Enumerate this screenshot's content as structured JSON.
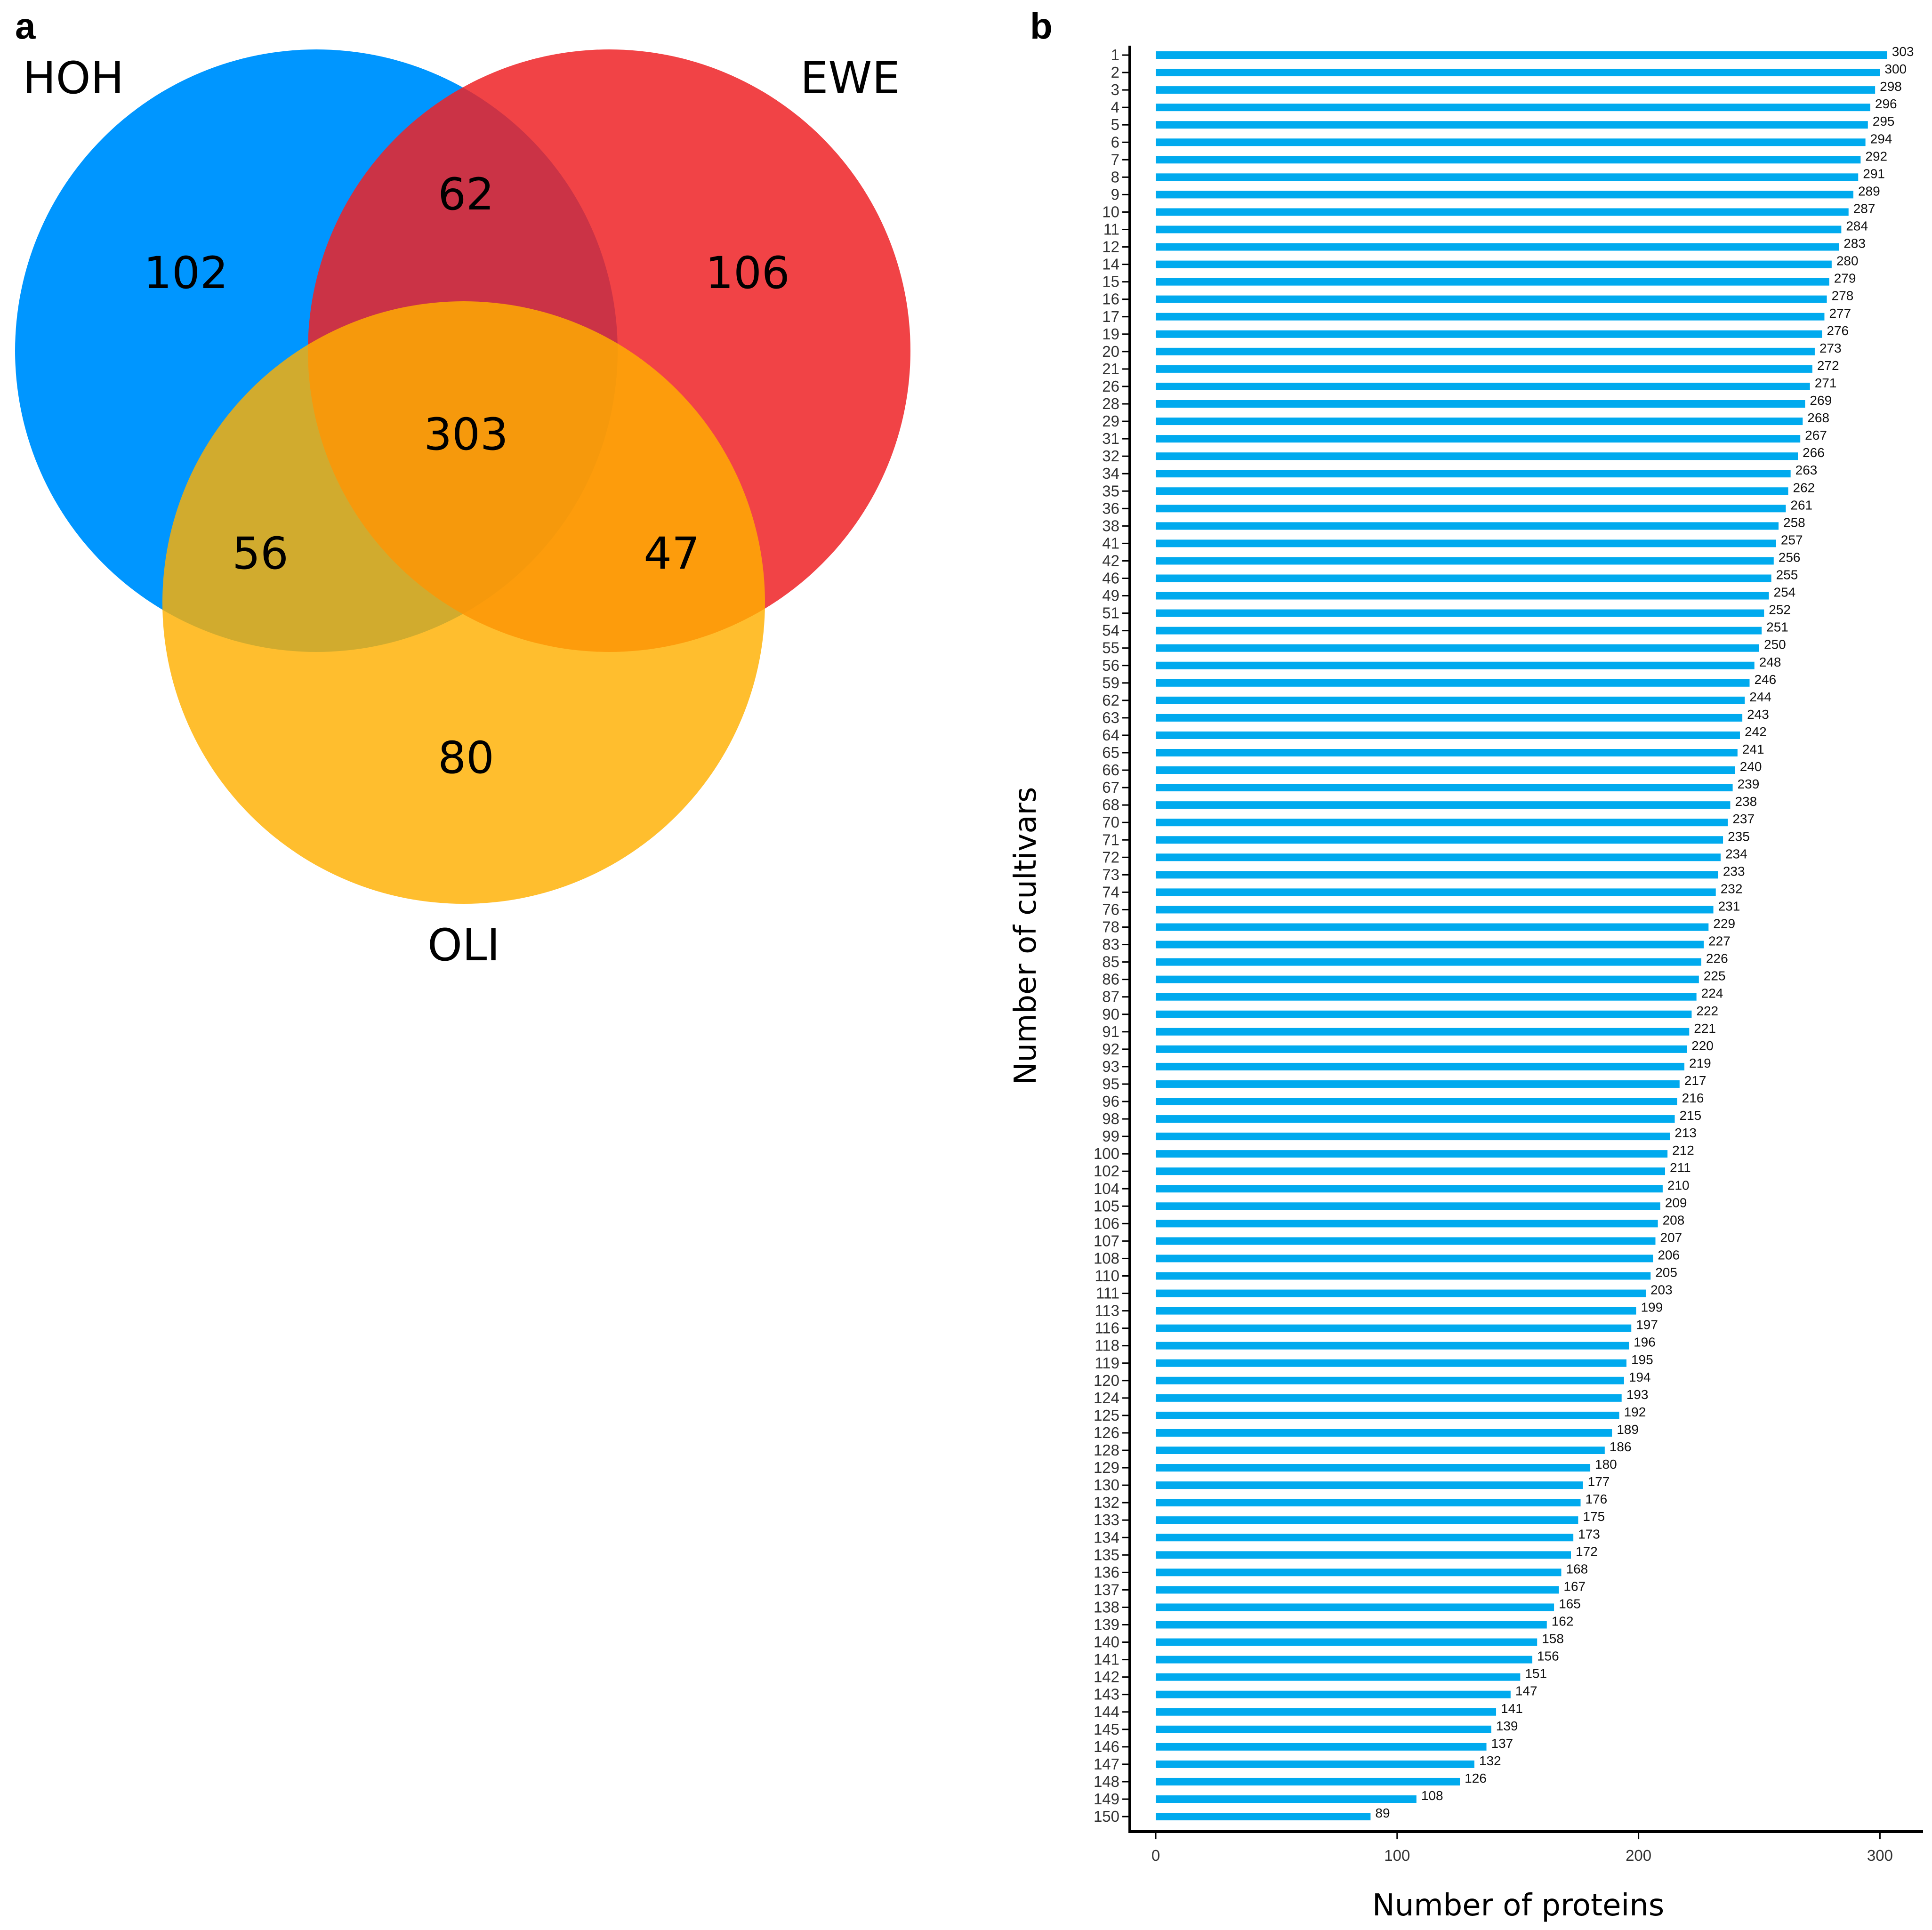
{
  "panels": {
    "a": "a",
    "b": "b"
  },
  "chart_data": [
    {
      "type": "venn",
      "sets": [
        "HOH",
        "EWE",
        "OLI"
      ],
      "colors": {
        "HOH": "#0096ff",
        "EWE": "#ee2226",
        "OLI": "#ffb000"
      },
      "regions": {
        "HOH_only": 102,
        "EWE_only": 106,
        "OLI_only": 80,
        "HOH_EWE": 62,
        "HOH_OLI": 56,
        "EWE_OLI": 47,
        "HOH_EWE_OLI": 303
      },
      "region_labels": {
        "HOH_only": "102",
        "EWE_only": "106",
        "OLI_only": "80",
        "HOH_EWE": "62",
        "HOH_OLI": "56",
        "EWE_OLI": "47",
        "HOH_EWE_OLI": "303"
      }
    },
    {
      "type": "bar",
      "orientation": "horizontal",
      "bar_color": "#00aaee",
      "xlabel": "Number of proteins",
      "ylabel": "Number of cultivars",
      "xlim": [
        0,
        310
      ],
      "xticks": [
        0,
        100,
        200,
        300
      ],
      "xtick_labels": [
        "0",
        "100",
        "200",
        "300"
      ],
      "categories": [
        "1",
        "2",
        "3",
        "4",
        "5",
        "6",
        "7",
        "8",
        "9",
        "10",
        "11",
        "12",
        "14",
        "15",
        "16",
        "17",
        "19",
        "20",
        "21",
        "26",
        "28",
        "29",
        "31",
        "32",
        "34",
        "35",
        "36",
        "38",
        "41",
        "42",
        "46",
        "49",
        "51",
        "54",
        "55",
        "56",
        "59",
        "62",
        "63",
        "64",
        "65",
        "66",
        "67",
        "68",
        "70",
        "71",
        "72",
        "73",
        "74",
        "76",
        "78",
        "83",
        "85",
        "86",
        "87",
        "90",
        "91",
        "92",
        "93",
        "95",
        "96",
        "98",
        "99",
        "100",
        "102",
        "104",
        "105",
        "106",
        "107",
        "108",
        "110",
        "111",
        "113",
        "116",
        "118",
        "119",
        "120",
        "124",
        "125",
        "126",
        "128",
        "129",
        "130",
        "132",
        "133",
        "134",
        "135",
        "136",
        "137",
        "138",
        "139",
        "140",
        "141",
        "142",
        "143",
        "144",
        "145",
        "146",
        "147",
        "148",
        "149",
        "150"
      ],
      "values": [
        303,
        300,
        298,
        296,
        295,
        294,
        292,
        291,
        289,
        287,
        284,
        283,
        280,
        279,
        278,
        277,
        276,
        273,
        272,
        271,
        269,
        268,
        267,
        266,
        263,
        262,
        261,
        258,
        257,
        256,
        255,
        254,
        252,
        251,
        250,
        248,
        246,
        244,
        243,
        242,
        241,
        240,
        239,
        238,
        237,
        235,
        234,
        233,
        232,
        231,
        229,
        227,
        226,
        225,
        224,
        222,
        221,
        220,
        219,
        217,
        216,
        215,
        213,
        212,
        211,
        210,
        209,
        208,
        207,
        206,
        205,
        203,
        199,
        197,
        196,
        195,
        194,
        193,
        192,
        189,
        186,
        180,
        177,
        176,
        175,
        173,
        172,
        168,
        167,
        165,
        162,
        158,
        156,
        151,
        147,
        141,
        139,
        137,
        132,
        126,
        108,
        89
      ],
      "value_labels": [
        "303",
        "300",
        "298",
        "296",
        "295",
        "294",
        "292",
        "291",
        "289",
        "287",
        "284",
        "283",
        "280",
        "279",
        "278",
        "277",
        "276",
        "273",
        "272",
        "271",
        "269",
        "268",
        "267",
        "266",
        "263",
        "262",
        "261",
        "258",
        "257",
        "256",
        "255",
        "254",
        "252",
        "251",
        "250",
        "248",
        "246",
        "244",
        "243",
        "242",
        "241",
        "240",
        "239",
        "238",
        "237",
        "235",
        "234",
        "233",
        "232",
        "231",
        "229",
        "227",
        "226",
        "225",
        "224",
        "222",
        "221",
        "220",
        "219",
        "217",
        "216",
        "215",
        "213",
        "212",
        "211",
        "210",
        "209",
        "208",
        "207",
        "206",
        "205",
        "203",
        "199",
        "197",
        "196",
        "195",
        "194",
        "193",
        "192",
        "189",
        "186",
        "180",
        "177",
        "176",
        "175",
        "173",
        "172",
        "168",
        "167",
        "165",
        "162",
        "158",
        "156",
        "151",
        "147",
        "141",
        "139",
        "137",
        "132",
        "126",
        "108",
        "89"
      ]
    }
  ]
}
